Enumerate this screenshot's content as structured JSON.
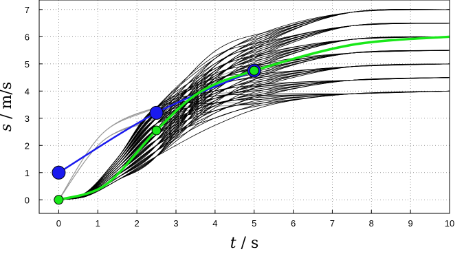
{
  "chart_data": {
    "type": "line",
    "title": "",
    "xlabel_var": "t",
    "xlabel_unit": "s",
    "ylabel_var": "s",
    "ylabel_unit": "m/s",
    "xlim": [
      -0.5,
      10
    ],
    "ylim": [
      -0.5,
      7.35
    ],
    "xticks": [
      0,
      1,
      2,
      3,
      4,
      5,
      6,
      7,
      8,
      9,
      10
    ],
    "yticks": [
      0,
      1,
      2,
      3,
      4,
      5,
      6,
      7
    ],
    "xtick_labels": [
      "0",
      "1",
      "2",
      "3",
      "4",
      "5",
      "6",
      "7",
      "8",
      "9",
      "10"
    ],
    "ytick_labels": [
      "0",
      "1",
      "2",
      "3",
      "4",
      "5",
      "6",
      "7"
    ],
    "grid": true,
    "colors": {
      "black_curves": "#000000",
      "gray_curves": "#9a9a9a",
      "highlight": "#18e818",
      "blue": "#1a1aee"
    },
    "black_family": {
      "start": [
        0,
        0
      ],
      "t_mid": 2.5,
      "mid_values": [
        1.6,
        1.8,
        2.0,
        2.2,
        2.4,
        2.6,
        2.8,
        3.0,
        3.2,
        3.4
      ],
      "end_values": [
        4.0,
        4.5,
        5.0,
        5.5,
        6.0,
        6.5,
        7.0
      ]
    },
    "gray_family": {
      "start": [
        0,
        0
      ],
      "t_mid": 2.5,
      "mid_values": [
        3.4,
        3.0
      ],
      "t_end": 5,
      "end_values": [
        5.0,
        4.0,
        3.5
      ]
    },
    "blue_series": {
      "t": [
        0,
        2.5,
        5
      ],
      "values": [
        1.0,
        3.2,
        4.75
      ]
    },
    "green_series": {
      "t": [
        0,
        2.5,
        5,
        10
      ],
      "values": [
        0,
        2.55,
        4.75,
        6.0
      ],
      "markers_t": [
        0,
        2.5,
        5
      ],
      "markers_values": [
        0,
        2.55,
        4.75
      ]
    }
  }
}
